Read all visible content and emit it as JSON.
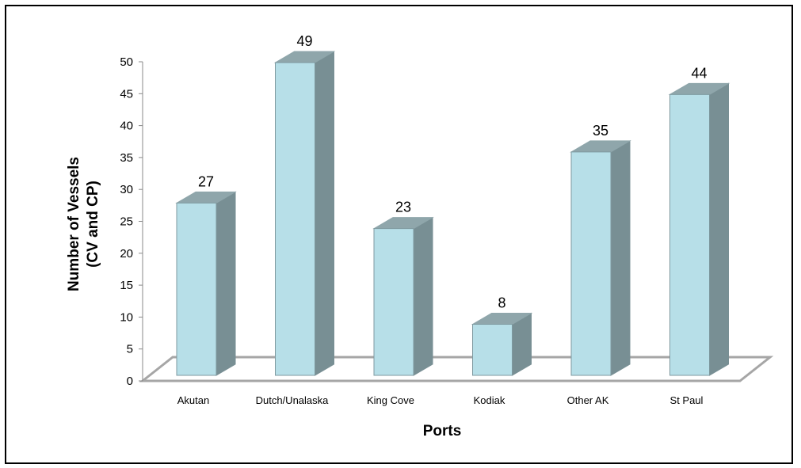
{
  "chart_data": {
    "type": "bar",
    "categories": [
      "Akutan",
      "Dutch/Unalaska",
      "King Cove",
      "Kodiak",
      "Other AK",
      "St Paul"
    ],
    "values": [
      27,
      49,
      23,
      8,
      35,
      44
    ],
    "xlabel": "Ports",
    "ylabel_lines": [
      "Number of Vessels",
      "(CV and CP)"
    ],
    "ylim": [
      0,
      50
    ],
    "ytick_step": 5,
    "yticks": [
      "0",
      "5",
      "10",
      "15",
      "20",
      "25",
      "30",
      "35",
      "40",
      "45",
      "50"
    ],
    "grid": false,
    "legend": "none",
    "style": "3d-columns",
    "colors": {
      "bar_front": "#b7dfe8",
      "bar_side": "#788f94",
      "bar_top": "#8fa6ab",
      "bar_edge": "#7f9aa0",
      "floor_line": "#a6a6a6",
      "axis": "#888888"
    }
  }
}
